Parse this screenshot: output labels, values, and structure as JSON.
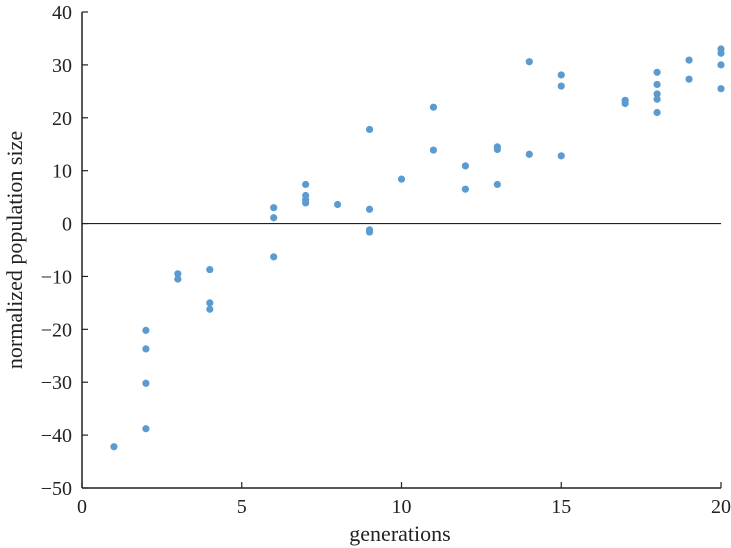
{
  "chart_data": {
    "type": "scatter",
    "title": "",
    "xlabel": "generations",
    "ylabel": "normalized population size",
    "xlim": [
      0,
      20
    ],
    "ylim": [
      -50,
      40
    ],
    "xticks": [
      0,
      5,
      10,
      15,
      20
    ],
    "yticks": [
      -50,
      -40,
      -30,
      -20,
      -10,
      0,
      10,
      20,
      30,
      40
    ],
    "xtick_labels": [
      "0",
      "5",
      "10",
      "15",
      "20"
    ],
    "ytick_labels": [
      "−50",
      "−40",
      "−30",
      "−20",
      "−10",
      "0",
      "10",
      "20",
      "30",
      "40"
    ],
    "zero_line": true,
    "grid": false,
    "legend": "none",
    "point_color": "#5b9bd0",
    "series": [
      {
        "points": [
          [
            1,
            -42.2
          ],
          [
            2,
            -20.2
          ],
          [
            2,
            -23.7
          ],
          [
            2,
            -30.2
          ],
          [
            2,
            -38.8
          ],
          [
            3,
            -9.5
          ],
          [
            3,
            -10.5
          ],
          [
            4,
            -8.7
          ],
          [
            4,
            -15
          ],
          [
            4,
            -16.2
          ],
          [
            6,
            3
          ],
          [
            6,
            1.1
          ],
          [
            6,
            -6.3
          ],
          [
            7,
            7.4
          ],
          [
            7,
            5.3
          ],
          [
            7,
            4.5
          ],
          [
            7,
            3.9
          ],
          [
            8,
            3.6
          ],
          [
            9,
            17.8
          ],
          [
            9,
            2.7
          ],
          [
            9,
            -1.2
          ],
          [
            9,
            -1.6
          ],
          [
            10,
            8.4
          ],
          [
            11,
            22
          ],
          [
            11,
            13.9
          ],
          [
            12,
            10.9
          ],
          [
            12,
            6.5
          ],
          [
            13,
            14.5
          ],
          [
            13,
            14
          ],
          [
            13,
            7.4
          ],
          [
            14,
            30.6
          ],
          [
            14,
            13.1
          ],
          [
            15,
            28.1
          ],
          [
            15,
            26
          ],
          [
            15,
            12.8
          ],
          [
            17,
            23.3
          ],
          [
            17,
            22.7
          ],
          [
            18,
            28.6
          ],
          [
            18,
            26.3
          ],
          [
            18,
            24.5
          ],
          [
            18,
            23.5
          ],
          [
            18,
            21
          ],
          [
            19,
            30.9
          ],
          [
            19,
            27.3
          ],
          [
            20,
            33
          ],
          [
            20,
            32.2
          ],
          [
            20,
            30
          ],
          [
            20,
            25.5
          ]
        ]
      }
    ]
  }
}
